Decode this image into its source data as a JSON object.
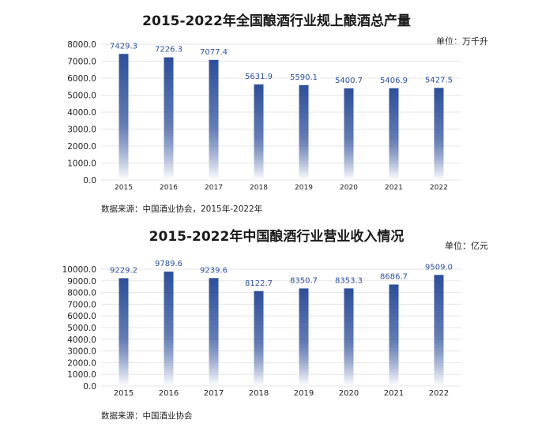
{
  "charts": [
    {
      "title": "2015-2022年全国酿酒行业规上酿酒总产量",
      "unit_label": "单位：万千升",
      "source": "数据来源：中国酒业协会，2015年-2022年"
    },
    {
      "title": "2015-2022年中国酿酒行业营业收入情况",
      "unit_label": "单位：亿元",
      "source": "数据来源：中国酒业协会"
    }
  ],
  "colors": {
    "bar_top": "#2d4f9c",
    "bar_bottom": "#ffffff",
    "label": "#2d4f9c",
    "grid": "#e6e6e6"
  },
  "chart_data": [
    {
      "type": "bar",
      "title": "2015-2022年全国酿酒行业规上酿酒总产量",
      "categories": [
        "2015",
        "2016",
        "2017",
        "2018",
        "2019",
        "2020",
        "2021",
        "2022"
      ],
      "values": [
        7429.3,
        7226.3,
        7077.4,
        5631.9,
        5590.1,
        5400.7,
        5406.9,
        5427.5
      ],
      "value_labels": [
        "7429.3",
        "7226.3",
        "7077.4",
        "5631.9",
        "5590.1",
        "5400.7",
        "5406.9",
        "5427.5"
      ],
      "ylim": [
        0,
        8000
      ],
      "yticks": [
        0,
        1000,
        2000,
        3000,
        4000,
        5000,
        6000,
        7000,
        8000
      ],
      "ytick_labels": [
        "0.0",
        "1000.0",
        "2000.0",
        "3000.0",
        "4000.0",
        "5000.0",
        "6000.0",
        "7000.0",
        "8000.0"
      ],
      "grid": true
    },
    {
      "type": "bar",
      "title": "2015-2022年中国酿酒行业营业收入情况",
      "categories": [
        "2015",
        "2016",
        "2017",
        "2018",
        "2019",
        "2020",
        "2021",
        "2022"
      ],
      "values": [
        9229.2,
        9789.6,
        9239.6,
        8122.7,
        8350.7,
        8353.3,
        8686.7,
        9509.0
      ],
      "value_labels": [
        "9229.2",
        "9789.6",
        "9239.6",
        "8122.7",
        "8350.7",
        "8353.3",
        "8686.7",
        "9509.0"
      ],
      "ylim": [
        0,
        10000
      ],
      "yticks": [
        0,
        1000,
        2000,
        3000,
        4000,
        5000,
        6000,
        7000,
        8000,
        9000,
        10000
      ],
      "ytick_labels": [
        "0.0",
        "1000.0",
        "2000.0",
        "3000.0",
        "4000.0",
        "5000.0",
        "6000.0",
        "7000.0",
        "8000.0",
        "9000.0",
        "10000.0"
      ],
      "grid": true
    }
  ]
}
